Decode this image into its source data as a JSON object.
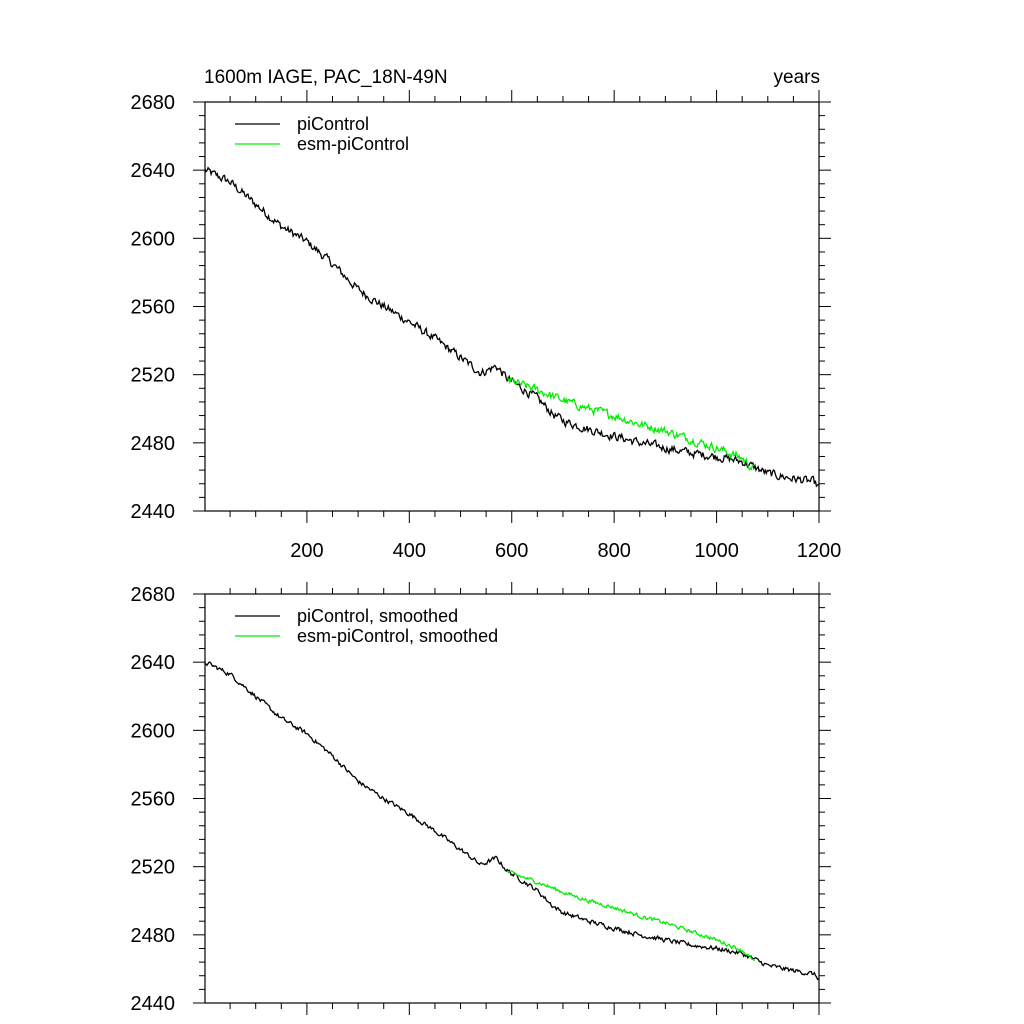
{
  "figure": {
    "title_left": "1600m IAGE, PAC_18N-49N",
    "title_right": "years"
  },
  "colors": {
    "picontrol": "#000000",
    "esm": "#00ee00",
    "axis": "#000000"
  },
  "chart_data": [
    {
      "type": "line",
      "title": "1600m IAGE, PAC_18N-49N",
      "xlabel": "years",
      "xlim": [
        1,
        1200
      ],
      "ylim": [
        2440,
        2680
      ],
      "xticks": [
        200,
        400,
        600,
        800,
        1000,
        1200
      ],
      "yticks": [
        2440,
        2480,
        2520,
        2560,
        2600,
        2640,
        2680
      ],
      "show_x_tick_labels": true,
      "legend_position": "top-left",
      "series": [
        {
          "name": "piControl",
          "color": "#000000",
          "noise": 2.2,
          "anchors": [
            [
              1,
              2640
            ],
            [
              50,
              2633
            ],
            [
              100,
              2620
            ],
            [
              150,
              2607
            ],
            [
              200,
              2598
            ],
            [
              250,
              2585
            ],
            [
              300,
              2570
            ],
            [
              350,
              2560
            ],
            [
              400,
              2551
            ],
            [
              450,
              2541
            ],
            [
              500,
              2530
            ],
            [
              540,
              2521
            ],
            [
              570,
              2525
            ],
            [
              590,
              2518
            ],
            [
              620,
              2512
            ],
            [
              650,
              2506
            ],
            [
              680,
              2497
            ],
            [
              700,
              2493
            ],
            [
              750,
              2488
            ],
            [
              800,
              2484
            ],
            [
              850,
              2480
            ],
            [
              900,
              2477
            ],
            [
              950,
              2474
            ],
            [
              1000,
              2472
            ],
            [
              1050,
              2469
            ],
            [
              1100,
              2462
            ],
            [
              1150,
              2459
            ],
            [
              1190,
              2457
            ],
            [
              1200,
              2454
            ]
          ]
        },
        {
          "name": "esm-piControl",
          "color": "#00ee00",
          "noise": 2.2,
          "anchors": [
            [
              590,
              2517
            ],
            [
              650,
              2511
            ],
            [
              700,
              2505
            ],
            [
              750,
              2500
            ],
            [
              800,
              2496
            ],
            [
              850,
              2491
            ],
            [
              900,
              2487
            ],
            [
              950,
              2482
            ],
            [
              1000,
              2477
            ],
            [
              1050,
              2471
            ],
            [
              1075,
              2464
            ]
          ]
        }
      ]
    },
    {
      "type": "line",
      "title": "",
      "xlabel": "",
      "xlim": [
        1,
        1200
      ],
      "ylim": [
        2440,
        2680
      ],
      "xticks": [
        200,
        400,
        600,
        800,
        1000,
        1200
      ],
      "yticks": [
        2440,
        2480,
        2520,
        2560,
        2600,
        2640,
        2680
      ],
      "show_x_tick_labels": false,
      "legend_position": "top-left",
      "series": [
        {
          "name": "piControl, smoothed",
          "color": "#000000",
          "noise": 1.2,
          "anchors": [
            [
              1,
              2640
            ],
            [
              50,
              2633
            ],
            [
              100,
              2620
            ],
            [
              150,
              2607
            ],
            [
              200,
              2598
            ],
            [
              250,
              2585
            ],
            [
              300,
              2570
            ],
            [
              350,
              2560
            ],
            [
              400,
              2551
            ],
            [
              450,
              2541
            ],
            [
              500,
              2530
            ],
            [
              540,
              2521
            ],
            [
              570,
              2525
            ],
            [
              590,
              2518
            ],
            [
              620,
              2512
            ],
            [
              650,
              2506
            ],
            [
              680,
              2497
            ],
            [
              700,
              2493
            ],
            [
              750,
              2488
            ],
            [
              800,
              2484
            ],
            [
              850,
              2480
            ],
            [
              900,
              2477
            ],
            [
              950,
              2474
            ],
            [
              1000,
              2472
            ],
            [
              1050,
              2469
            ],
            [
              1100,
              2462
            ],
            [
              1150,
              2459
            ],
            [
              1190,
              2457
            ],
            [
              1200,
              2454
            ]
          ]
        },
        {
          "name": "esm-piControl, smoothed",
          "color": "#00ee00",
          "noise": 1.0,
          "anchors": [
            [
              590,
              2517
            ],
            [
              650,
              2511
            ],
            [
              700,
              2505
            ],
            [
              750,
              2500
            ],
            [
              800,
              2496
            ],
            [
              850,
              2491
            ],
            [
              900,
              2487
            ],
            [
              950,
              2482
            ],
            [
              1000,
              2477
            ],
            [
              1050,
              2471
            ],
            [
              1075,
              2464
            ]
          ]
        }
      ]
    }
  ]
}
